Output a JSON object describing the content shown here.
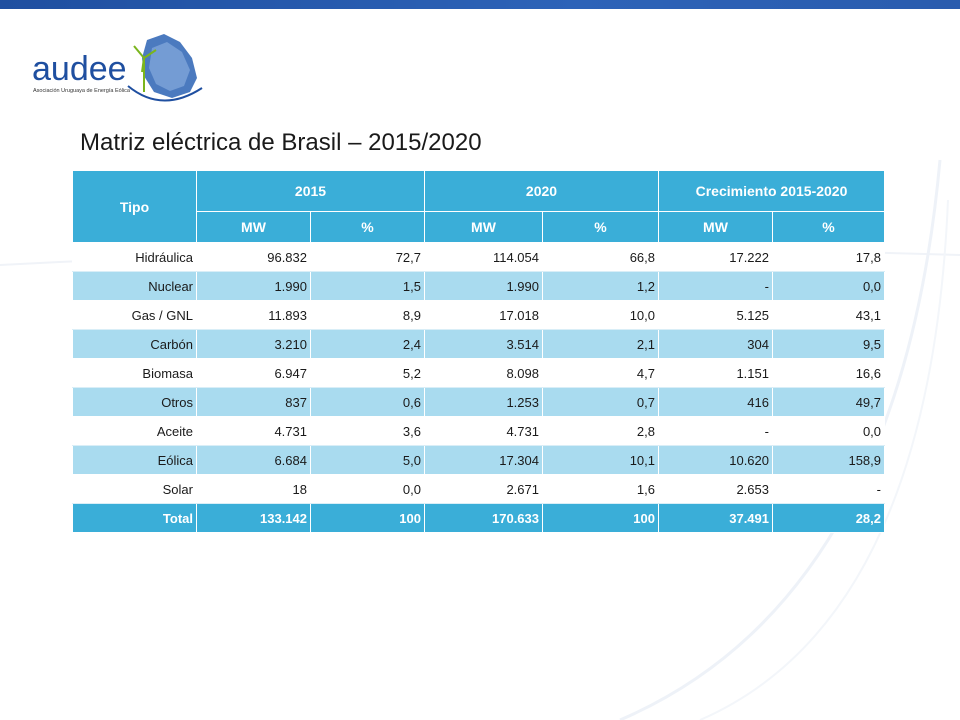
{
  "logo": {
    "text": "audee",
    "subtitle": "Asociación Uruguaya de Energía Eólica"
  },
  "title": "Matriz eléctrica de Brasil – 2015/2020",
  "table": {
    "header_tipo": "Tipo",
    "groups": [
      "2015",
      "2020",
      "Crecimiento 2015-2020"
    ],
    "subheaders": [
      "MW",
      "%",
      "MW",
      "%",
      "MW",
      "%"
    ],
    "rows": [
      {
        "tipo": "Hidráulica",
        "cells": [
          "96.832",
          "72,7",
          "114.054",
          "66,8",
          "17.222",
          "17,8"
        ]
      },
      {
        "tipo": "Nuclear",
        "cells": [
          "1.990",
          "1,5",
          "1.990",
          "1,2",
          "-",
          "0,0"
        ]
      },
      {
        "tipo": "Gas / GNL",
        "cells": [
          "11.893",
          "8,9",
          "17.018",
          "10,0",
          "5.125",
          "43,1"
        ]
      },
      {
        "tipo": "Carbón",
        "cells": [
          "3.210",
          "2,4",
          "3.514",
          "2,1",
          "304",
          "9,5"
        ]
      },
      {
        "tipo": "Biomasa",
        "cells": [
          "6.947",
          "5,2",
          "8.098",
          "4,7",
          "1.151",
          "16,6"
        ]
      },
      {
        "tipo": "Otros",
        "cells": [
          "837",
          "0,6",
          "1.253",
          "0,7",
          "416",
          "49,7"
        ]
      },
      {
        "tipo": "Aceite",
        "cells": [
          "4.731",
          "3,6",
          "4.731",
          "2,8",
          "-",
          "0,0"
        ]
      },
      {
        "tipo": "Eólica",
        "cells": [
          "6.684",
          "5,0",
          "17.304",
          "10,1",
          "10.620",
          "158,9"
        ]
      },
      {
        "tipo": "Solar",
        "cells": [
          "18",
          "0,0",
          "2.671",
          "1,6",
          "2.653",
          "-"
        ]
      }
    ],
    "total": {
      "tipo": "Total",
      "cells": [
        "133.142",
        "100",
        "170.633",
        "100",
        "37.491",
        "28,2"
      ]
    }
  },
  "colors": {
    "header": "#3aaed8",
    "row_alt": "#a9dbef",
    "top_bar": "#2a5cae",
    "logo_green": "#7ab51d",
    "logo_blue": "#1f4fa0"
  }
}
